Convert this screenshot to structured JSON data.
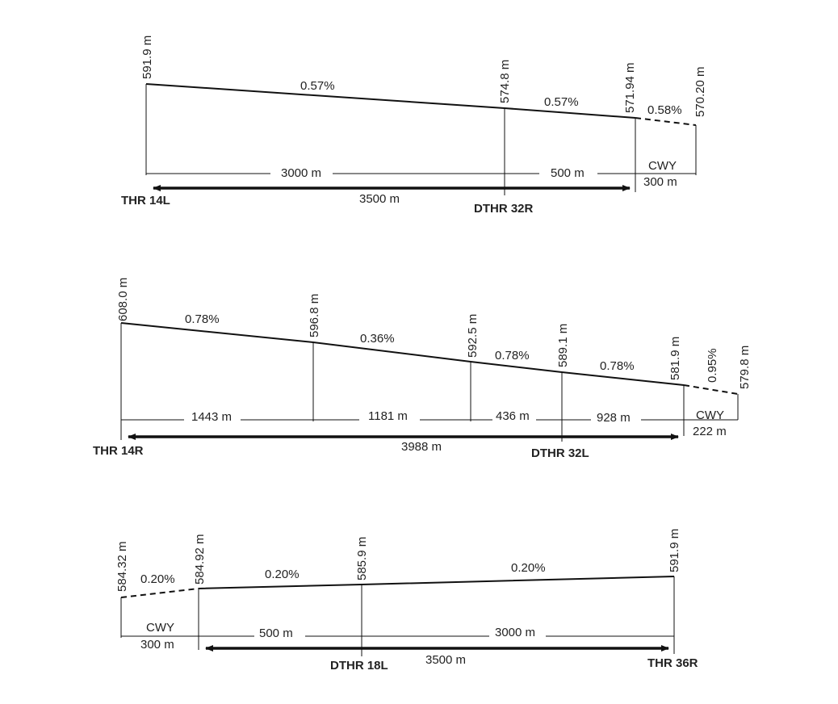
{
  "profiles": [
    {
      "elevations": [
        "591.9 m",
        "574.8 m",
        "571.94 m",
        "570.20 m"
      ],
      "slopes": [
        "0.57%",
        "0.57%",
        "0.58%"
      ],
      "distances": [
        "3000 m",
        "500 m"
      ],
      "cwy": {
        "label": "CWY",
        "length": "300 m"
      },
      "total": "3500 m",
      "thresholds": [
        "THR 14L",
        "DTHR 32R"
      ]
    },
    {
      "elevations": [
        "608.0 m",
        "596.8 m",
        "592.5 m",
        "589.1 m",
        "581.9 m",
        "579.8 m"
      ],
      "slopes": [
        "0.78%",
        "0.36%",
        "0.78%",
        "0.78%",
        "0.95%"
      ],
      "distances": [
        "1443 m",
        "1181 m",
        "436 m",
        "928 m"
      ],
      "cwy": {
        "label": "CWY",
        "length": "222 m"
      },
      "total": "3988 m",
      "thresholds": [
        "THR 14R",
        "DTHR 32L"
      ]
    },
    {
      "elevations": [
        "584.32 m",
        "584.92 m",
        "585.9 m",
        "591.9 m"
      ],
      "slopes": [
        "0.20%",
        "0.20%",
        "0.20%"
      ],
      "distances": [
        "500 m",
        "3000 m"
      ],
      "cwy": {
        "label": "CWY",
        "length": "300 m"
      },
      "total": "3500 m",
      "thresholds": [
        "DTHR 18L",
        "THR 36R"
      ]
    }
  ]
}
